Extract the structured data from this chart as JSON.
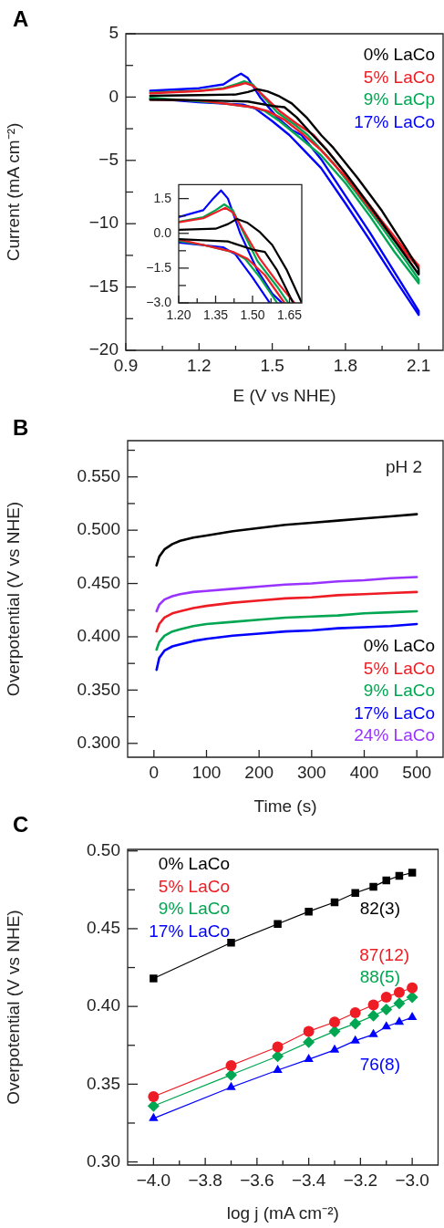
{
  "chart_data": [
    {
      "type": "line",
      "title": "A",
      "xlabel": "E (V vs NHE)",
      "ylabel": "Current (mA cm⁻²)",
      "legend": "top right",
      "marker": "none",
      "xlim": [
        0.9,
        2.2
      ],
      "ylim": [
        -20,
        5
      ],
      "xticks": [
        0.9,
        {
          "value": 1.05,
          "label": null
        },
        1.2,
        {
          "value": 1.35,
          "label": null
        },
        1.5,
        {
          "value": 1.65,
          "label": null
        },
        1.8,
        {
          "value": 1.95,
          "label": null
        },
        2.1
      ],
      "yticks": [
        {
          "value": -20,
          "label": "−20"
        },
        {
          "value": -17.5,
          "label": null
        },
        {
          "value": -15,
          "label": "−15"
        },
        {
          "value": -12.5,
          "label": null
        },
        {
          "value": -10,
          "label": "−10"
        },
        {
          "value": -7.5,
          "label": null
        },
        {
          "value": -5,
          "label": "−5"
        },
        {
          "value": -2.5,
          "label": null
        },
        0,
        {
          "value": 2.5,
          "label": null
        },
        5
      ],
      "series": [
        {
          "name": "0% LaCo",
          "color": "#000000",
          "x": [
            1.0,
            1.2,
            1.35,
            1.4,
            1.437,
            1.48,
            1.53,
            1.58,
            1.64,
            1.7,
            1.75,
            1.85,
            1.95,
            2.05,
            2.1,
            2.1,
            2.0,
            1.9,
            1.8,
            1.72,
            1.665,
            1.6,
            1.55,
            1.5,
            1.4,
            1.2,
            1.0
          ],
          "values": [
            0.1,
            0.15,
            0.2,
            0.4,
            0.62,
            0.45,
            0.05,
            -0.5,
            -1.6,
            -3.0,
            -4.0,
            -6.4,
            -9.0,
            -12.0,
            -13.6,
            -14.0,
            -11.3,
            -8.6,
            -6.0,
            -4.1,
            -3.0,
            -1.6,
            -0.8,
            -0.7,
            -0.35,
            -0.25,
            -0.2
          ]
        },
        {
          "name": "5% LaCo",
          "color": "#ee1c24",
          "x": [
            1.0,
            1.2,
            1.3,
            1.36,
            1.39,
            1.42,
            1.47,
            1.53,
            1.6,
            1.67,
            1.75,
            1.85,
            1.95,
            2.05,
            2.1,
            2.1,
            2.0,
            1.9,
            1.8,
            1.7,
            1.63,
            1.55,
            1.48,
            1.42,
            1.3,
            1.2,
            1.0
          ],
          "values": [
            0.3,
            0.48,
            0.65,
            0.95,
            1.1,
            0.9,
            0.0,
            -1.1,
            -2.1,
            -3.0,
            -4.8,
            -7.3,
            -9.8,
            -12.2,
            -13.3,
            -13.5,
            -11.3,
            -8.8,
            -6.3,
            -4.2,
            -3.0,
            -1.8,
            -1.1,
            -0.8,
            -0.5,
            -0.27,
            -0.2
          ]
        },
        {
          "name": "9% LaCp",
          "color": "#00a651",
          "x": [
            1.0,
            1.2,
            1.3,
            1.35,
            1.385,
            1.42,
            1.46,
            1.52,
            1.6,
            1.645,
            1.75,
            1.85,
            1.95,
            2.05,
            2.1,
            2.1,
            2.0,
            1.9,
            1.8,
            1.7,
            1.6,
            1.53,
            1.47,
            1.42,
            1.3,
            1.2,
            1.0
          ],
          "values": [
            0.35,
            0.5,
            0.7,
            1.0,
            1.25,
            1.0,
            0.1,
            -1.2,
            -2.3,
            -3.0,
            -5.2,
            -7.7,
            -10.3,
            -13.0,
            -14.4,
            -14.7,
            -12.2,
            -9.4,
            -6.8,
            -4.6,
            -3.0,
            -1.9,
            -1.1,
            -0.8,
            -0.5,
            -0.33,
            -0.05
          ]
        },
        {
          "name": "17% LaCo",
          "color": "#0000ff",
          "x": [
            1.0,
            1.2,
            1.3,
            1.34,
            1.372,
            1.4,
            1.45,
            1.52,
            1.58,
            1.62,
            1.7,
            1.8,
            1.9,
            2.0,
            2.1,
            2.1,
            2.0,
            1.9,
            1.8,
            1.7,
            1.62,
            1.57,
            1.5,
            1.43,
            1.38,
            1.2,
            1.0
          ],
          "values": [
            0.5,
            0.7,
            1.0,
            1.5,
            1.85,
            1.5,
            0.0,
            -1.6,
            -2.6,
            -3.0,
            -4.9,
            -7.8,
            -10.7,
            -13.8,
            -16.9,
            -17.2,
            -14.3,
            -11.3,
            -8.4,
            -5.6,
            -4.0,
            -3.0,
            -1.9,
            -0.9,
            -0.6,
            -0.4,
            -0.1
          ]
        }
      ]
    },
    {
      "type": "line",
      "marker": "none",
      "xlim": [
        1.2,
        1.7
      ],
      "ylim": [
        -3,
        2.1
      ],
      "xticks": [
        {
          "value": 1.2,
          "label": "1.20"
        },
        {
          "value": 1.275,
          "label": null
        },
        {
          "value": 1.35,
          "label": "1.35"
        },
        {
          "value": 1.425,
          "label": null
        },
        {
          "value": 1.5,
          "label": "1.50"
        },
        {
          "value": 1.575,
          "label": null
        },
        {
          "value": 1.65,
          "label": "1.65"
        }
      ],
      "yticks": [
        {
          "value": -3,
          "label": "−3.0"
        },
        {
          "value": -2.25,
          "label": null
        },
        {
          "value": -1.5,
          "label": "−1.5"
        },
        {
          "value": -0.75,
          "label": null
        },
        {
          "value": 0,
          "label": "0.0"
        },
        {
          "value": 0.75,
          "label": null
        },
        1.5
      ],
      "series": [
        {
          "color": "#000000",
          "x": [
            1.2,
            1.35,
            1.4,
            1.437,
            1.48,
            1.53,
            1.58,
            1.64,
            1.7,
            null,
            1.665,
            1.6,
            1.55,
            1.5,
            1.4,
            1.2
          ],
          "values": [
            0.15,
            0.2,
            0.4,
            0.62,
            0.45,
            0.05,
            -0.5,
            -1.6,
            -3.0,
            null,
            -3.0,
            -1.6,
            -0.8,
            -0.7,
            -0.35,
            -0.25
          ]
        },
        {
          "color": "#ee1c24",
          "x": [
            1.2,
            1.3,
            1.36,
            1.39,
            1.42,
            1.47,
            1.53,
            1.6,
            1.67,
            null,
            1.63,
            1.55,
            1.48,
            1.42,
            1.3,
            1.2
          ],
          "values": [
            0.48,
            0.65,
            0.95,
            1.1,
            0.9,
            0.0,
            -1.1,
            -2.1,
            -3.0,
            null,
            -3.0,
            -1.8,
            -1.1,
            -0.8,
            -0.5,
            -0.27
          ]
        },
        {
          "color": "#00a651",
          "x": [
            1.2,
            1.3,
            1.35,
            1.385,
            1.42,
            1.46,
            1.52,
            1.6,
            1.645,
            null,
            1.6,
            1.53,
            1.47,
            1.42,
            1.3,
            1.2
          ],
          "values": [
            0.5,
            0.7,
            1.0,
            1.25,
            1.0,
            0.1,
            -1.2,
            -2.3,
            -3.0,
            null,
            -3.0,
            -1.9,
            -1.1,
            -0.8,
            -0.5,
            -0.33
          ]
        },
        {
          "color": "#0000ff",
          "x": [
            1.2,
            1.3,
            1.34,
            1.372,
            1.4,
            1.45,
            1.52,
            1.58,
            1.62,
            null,
            1.57,
            1.5,
            1.43,
            1.38,
            1.2
          ],
          "values": [
            0.7,
            1.0,
            1.5,
            1.85,
            1.5,
            0.0,
            -1.6,
            -2.6,
            -3.0,
            null,
            -3.0,
            -1.9,
            -0.9,
            -0.6,
            -0.4
          ]
        }
      ]
    },
    {
      "type": "line",
      "title": "B",
      "xlabel": "Time (s)",
      "ylabel": "Overpotential (V vs NHE)",
      "legend": "bottom right",
      "marker": "none",
      "annotations": [
        "pH 2"
      ],
      "xlim": [
        -50,
        550
      ],
      "ylim": [
        0.287,
        0.584
      ],
      "xticks": [
        0,
        100,
        200,
        300,
        400,
        500
      ],
      "yticks": [
        {
          "value": 0.3,
          "label": "0.300"
        },
        {
          "value": 0.325,
          "label": null
        },
        {
          "value": 0.35,
          "label": "0.350"
        },
        {
          "value": 0.375,
          "label": null
        },
        {
          "value": 0.4,
          "label": "0.400"
        },
        {
          "value": 0.425,
          "label": null
        },
        {
          "value": 0.45,
          "label": "0.450"
        },
        {
          "value": 0.475,
          "label": null
        },
        {
          "value": 0.5,
          "label": "0.500"
        },
        {
          "value": 0.525,
          "label": null
        },
        {
          "value": 0.55,
          "label": "0.550"
        },
        {
          "value": 0.575,
          "label": null
        }
      ],
      "x": [
        5,
        10,
        20,
        35,
        50,
        75,
        100,
        150,
        200,
        250,
        300,
        350,
        400,
        450,
        500
      ],
      "series": [
        {
          "name": "0% LaCo",
          "color": "#000000",
          "values": [
            0.467,
            0.475,
            0.482,
            0.487,
            0.49,
            0.493,
            0.495,
            0.499,
            0.502,
            0.505,
            0.507,
            0.509,
            0.511,
            0.513,
            0.515
          ]
        },
        {
          "name": "5% LaCo",
          "color": "#ee1c24",
          "values": [
            0.405,
            0.412,
            0.418,
            0.422,
            0.424,
            0.427,
            0.429,
            0.432,
            0.434,
            0.436,
            0.437,
            0.439,
            0.44,
            0.441,
            0.442
          ]
        },
        {
          "name": "9% LaCo",
          "color": "#00a651",
          "values": [
            0.388,
            0.395,
            0.401,
            0.405,
            0.407,
            0.41,
            0.412,
            0.414,
            0.416,
            0.418,
            0.419,
            0.42,
            0.422,
            0.423,
            0.424
          ]
        },
        {
          "name": "17% LaCo",
          "color": "#0000ff",
          "values": [
            0.369,
            0.38,
            0.387,
            0.391,
            0.393,
            0.396,
            0.398,
            0.401,
            0.403,
            0.405,
            0.406,
            0.408,
            0.409,
            0.41,
            0.412
          ]
        },
        {
          "name": "24% LaCo",
          "color": "#9933ff",
          "values": [
            0.424,
            0.43,
            0.435,
            0.438,
            0.44,
            0.442,
            0.443,
            0.445,
            0.447,
            0.449,
            0.45,
            0.452,
            0.453,
            0.455,
            0.456
          ]
        }
      ]
    },
    {
      "type": "line",
      "title": "C",
      "xlabel": "log j (mA cm⁻²)",
      "ylabel": "Overpotential (V vs NHE)",
      "legend": "top left",
      "xlim": [
        -4.1,
        -2.9
      ],
      "ylim": [
        0.298,
        0.501
      ],
      "xticks": [
        {
          "value": -4,
          "label": "−4.0"
        },
        {
          "value": -3.9,
          "label": null
        },
        {
          "value": -3.8,
          "label": "−3.8"
        },
        {
          "value": -3.7,
          "label": null
        },
        {
          "value": -3.6,
          "label": "−3.6"
        },
        {
          "value": -3.5,
          "label": null
        },
        {
          "value": -3.4,
          "label": "−3.4"
        },
        {
          "value": -3.3,
          "label": null
        },
        {
          "value": -3.2,
          "label": "−3.2"
        },
        {
          "value": -3.1,
          "label": null
        },
        {
          "value": -3.0,
          "label": "−3.0"
        }
      ],
      "yticks": [
        {
          "value": 0.3,
          "label": "0.30"
        },
        {
          "value": 0.325,
          "label": null
        },
        {
          "value": 0.35,
          "label": "0.35"
        },
        {
          "value": 0.375,
          "label": null
        },
        {
          "value": 0.4,
          "label": "0.40"
        },
        {
          "value": 0.425,
          "label": null
        },
        {
          "value": 0.45,
          "label": "0.45"
        },
        {
          "value": 0.475,
          "label": null
        },
        {
          "value": 0.5,
          "label": "0.50"
        }
      ],
      "x": [
        -4.0,
        -3.7,
        -3.52,
        -3.4,
        -3.3,
        -3.22,
        -3.15,
        -3.1,
        -3.05,
        -3.0
      ],
      "series": [
        {
          "name": "0% LaCo",
          "color": "#000000",
          "marker": "square",
          "values": [
            0.418,
            0.441,
            0.453,
            0.461,
            0.467,
            0.473,
            0.477,
            0.481,
            0.484,
            0.486
          ]
        },
        {
          "name": "5% LaCo",
          "color": "#ee1c24",
          "marker": "circle",
          "values": [
            0.342,
            0.362,
            0.374,
            0.384,
            0.39,
            0.396,
            0.401,
            0.406,
            0.409,
            0.412
          ]
        },
        {
          "name": "9% LaCo",
          "color": "#00a651",
          "marker": "diamond",
          "values": [
            0.336,
            0.356,
            0.368,
            0.377,
            0.384,
            0.389,
            0.394,
            0.398,
            0.402,
            0.406
          ]
        },
        {
          "name": "17% LaCo",
          "color": "#0000ff",
          "marker": "triangle",
          "values": [
            0.328,
            0.348,
            0.359,
            0.366,
            0.372,
            0.378,
            0.382,
            0.387,
            0.39,
            0.393
          ]
        }
      ],
      "annotations": [
        "82(3)",
        "87(12)",
        "88(5)",
        "76(8)"
      ]
    }
  ]
}
